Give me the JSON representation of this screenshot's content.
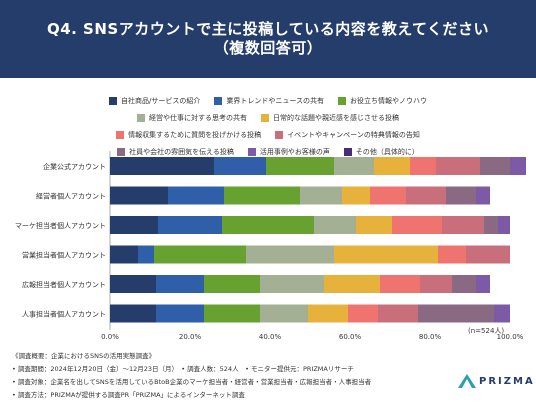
{
  "title_line1": "Q4. SNSアカウントで主に投稿している内容を教えてください",
  "title_line2": "（複数回答可）",
  "n_label": "(n=524人)",
  "notes": [
    "《調査概要：企業におけるSNSの活用実態調査》",
    "• 調査期間：2024年12月20日（金）〜12月23日（月）　• 調査人数：524人　• モニター提供元：PRIZMAリサーチ",
    "• 調査対象：企業名を出してSNSを活用しているBtoB企業のマーケ担当者・経営者・営業担当者・広報担当者・人事担当者",
    "• 調査方法：PRIZMAが提供する調査PR「PRIZMA」によるインターネット調査"
  ],
  "logo_text": "PRIZMA",
  "legend_rows": [
    [
      0,
      1,
      2
    ],
    [
      3,
      4
    ],
    [
      5,
      6
    ],
    [
      7,
      8,
      9
    ]
  ],
  "chart_data": {
    "type": "bar",
    "orientation": "horizontal",
    "stacked": true,
    "percent": true,
    "categories": [
      "企業公式アカウント",
      "経営者個人アカウント",
      "マーケ担当者個人アカウント",
      "営業担当者個人アカウント",
      "広報担当者個人アカウント",
      "人事担当者個人アカウント"
    ],
    "xlim": [
      0,
      100
    ],
    "xticks": [
      "0.0%",
      "20.0%",
      "40.0%",
      "60.0%",
      "80.0%",
      "100.0%"
    ],
    "series": [
      {
        "name": "自社商品/サービスの紹介",
        "color": "#253d6b",
        "values": [
          26,
          14.5,
          12,
          7,
          11.5,
          11.5
        ]
      },
      {
        "name": "業界トレンドやニュースの共有",
        "color": "#2f5fa8",
        "values": [
          13,
          14,
          16,
          4,
          12,
          12
        ]
      },
      {
        "name": "お役立ち情報やノウハウ",
        "color": "#67a12f",
        "values": [
          17,
          19,
          23,
          23,
          14,
          14
        ]
      },
      {
        "name": "経営や仕事に対する思考の共有",
        "color": "#a3b094",
        "values": [
          10,
          10.5,
          10.5,
          22,
          16,
          12
        ]
      },
      {
        "name": "日常的な話題や親近感を感じさせる投稿",
        "color": "#e6b23c",
        "values": [
          9,
          7,
          9,
          26,
          14,
          10
        ]
      },
      {
        "name": "情報収集するために質問を投げかける投稿",
        "color": "#ef7470",
        "values": [
          6.5,
          9,
          12.5,
          7,
          10,
          7.5
        ]
      },
      {
        "name": "イベントやキャンペーンの特典情報の告知",
        "color": "#c96f7c",
        "values": [
          11,
          10,
          10.5,
          11,
          8,
          10
        ]
      },
      {
        "name": "社員や会社の雰囲気を伝える投稿",
        "color": "#8a6a82",
        "values": [
          7.5,
          7.5,
          3.5,
          0,
          6,
          19
        ]
      },
      {
        "name": "活用事例やお客様の声",
        "color": "#7c5aa6",
        "values": [
          4,
          3.5,
          3,
          0,
          3.5,
          4
        ]
      },
      {
        "name": "その他（具体的に）",
        "color": "#4a2b78",
        "values": [
          0,
          0,
          0,
          0,
          0,
          0
        ]
      }
    ]
  }
}
